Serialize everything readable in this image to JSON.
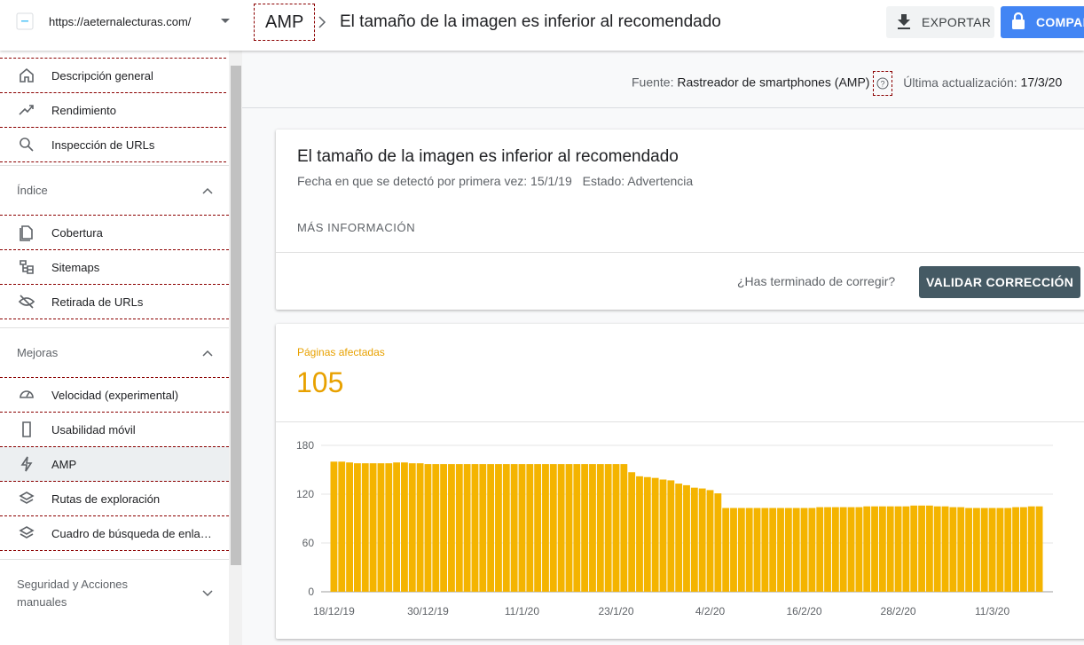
{
  "property": "https://aeternalecturas.com/",
  "sidebar": {
    "top_items": [
      "Descripción general",
      "Rendimiento",
      "Inspección de URLs"
    ],
    "sections": [
      {
        "title": "Índice",
        "items": [
          "Cobertura",
          "Sitemaps",
          "Retirada de URLs"
        ]
      },
      {
        "title": "Mejoras",
        "items": [
          "Velocidad (experimental)",
          "Usabilidad móvil",
          "AMP",
          "Rutas de exploración",
          "Cuadro de búsqueda de enla…"
        ]
      },
      {
        "title": "Seguridad y Acciones manuales",
        "items": []
      }
    ]
  },
  "header": {
    "breadcrumb": "AMP",
    "title": "El tamaño de la imagen es inferior al recomendado",
    "export_button": "EXPORTAR",
    "share_button": "COMPARTIR"
  },
  "source_bar": {
    "source_label": "Fuente:",
    "source": "Rastreador de smartphones (AMP)",
    "updated_label": "Última actualización:",
    "updated": "17/3/20"
  },
  "issue_card": {
    "title": "El tamaño de la imagen es inferior al recomendado",
    "detected_label": "Fecha en que se detectó por primera vez:",
    "detected": "15/1/19",
    "status_label": "Estado:",
    "status": "Advertencia",
    "more_info": "MÁS INFORMACIÓN",
    "question": "¿Has terminado de corregir?",
    "validate_button": "VALIDAR CORRECCIÓN"
  },
  "chart_card": {
    "label": "Páginas afectadas",
    "value": 105
  },
  "chart_data": {
    "type": "bar",
    "categories": [
      "18/12/19",
      null,
      null,
      null,
      null,
      null,
      null,
      null,
      null,
      null,
      null,
      null,
      "30/12/19",
      null,
      null,
      null,
      null,
      null,
      null,
      null,
      null,
      null,
      null,
      null,
      "11/1/20",
      null,
      null,
      null,
      null,
      null,
      null,
      null,
      null,
      null,
      null,
      null,
      "23/1/20",
      null,
      null,
      null,
      null,
      null,
      null,
      null,
      null,
      null,
      null,
      null,
      "4/2/20",
      null,
      null,
      null,
      null,
      null,
      null,
      null,
      null,
      null,
      null,
      null,
      "16/2/20",
      null,
      null,
      null,
      null,
      null,
      null,
      null,
      null,
      null,
      null,
      null,
      "28/2/20",
      null,
      null,
      null,
      null,
      null,
      null,
      null,
      null,
      null,
      null,
      null,
      "11/3/20",
      null,
      null,
      null,
      null,
      null,
      null
    ],
    "values": [
      160,
      160,
      159,
      158,
      158,
      158,
      158,
      158,
      159,
      159,
      158,
      158,
      157,
      157,
      157,
      157,
      157,
      157,
      157,
      157,
      157,
      157,
      157,
      157,
      157,
      157,
      157,
      157,
      157,
      157,
      157,
      157,
      157,
      157,
      157,
      157,
      157,
      157,
      147,
      142,
      141,
      140,
      138,
      137,
      133,
      131,
      128,
      127,
      125,
      121,
      103,
      103,
      103,
      103,
      103,
      103,
      103,
      103,
      103,
      103,
      103,
      103,
      104,
      104,
      104,
      104,
      104,
      104,
      105,
      105,
      105,
      105,
      105,
      105,
      106,
      106,
      106,
      105,
      105,
      104,
      104,
      103,
      103,
      103,
      103,
      103,
      103,
      104,
      104,
      105,
      105
    ],
    "color": "#f4b400",
    "ylim": [
      0,
      180
    ],
    "yticks": [
      0,
      60,
      120,
      180
    ],
    "grid": true
  }
}
